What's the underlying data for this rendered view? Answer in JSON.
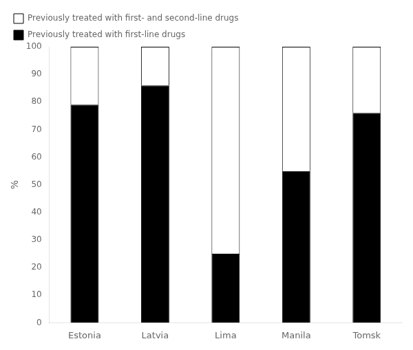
{
  "chart_data": {
    "type": "bar",
    "stacked": true,
    "categories": [
      "Estonia",
      "Latvia",
      "Lima",
      "Manila",
      "Tomsk"
    ],
    "series": [
      {
        "name": "Previously treated with first-line drugs",
        "color": "#000000",
        "values": [
          79,
          86,
          25,
          55,
          76
        ]
      },
      {
        "name": "Previously treated with first- and second-line drugs",
        "color": "#ffffff",
        "values": [
          21,
          14,
          75,
          45,
          24
        ]
      }
    ],
    "ylabel": "%",
    "ylim": [
      0,
      100
    ],
    "yticks": [
      0,
      10,
      20,
      30,
      40,
      50,
      60,
      70,
      80,
      90,
      100
    ],
    "grid": false,
    "legend": "upper left"
  }
}
